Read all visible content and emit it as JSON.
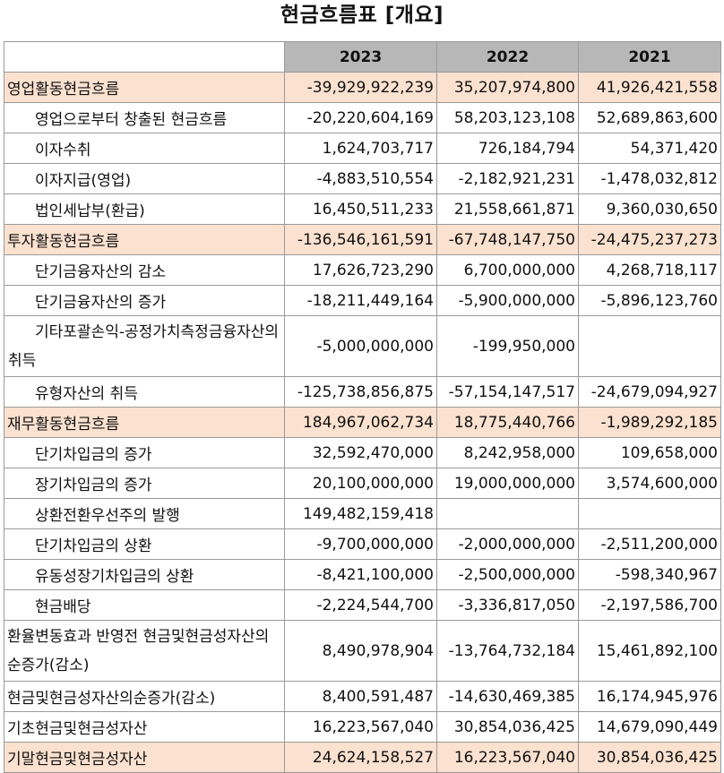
{
  "title": "현금흐름표 [개요]",
  "columns": [
    "2023",
    "2022",
    "2021"
  ],
  "rows": [
    {
      "label": "영업활동현금흐름",
      "highlight": true,
      "indent": false,
      "wrap": false,
      "values": [
        "-39,929,922,239",
        "35,207,974,800",
        "41,926,421,558"
      ]
    },
    {
      "label": "영업으로부터 창출된 현금흐름",
      "highlight": false,
      "indent": true,
      "wrap": false,
      "values": [
        "-20,220,604,169",
        "58,203,123,108",
        "52,689,863,600"
      ]
    },
    {
      "label": "이자수취",
      "highlight": false,
      "indent": true,
      "wrap": false,
      "values": [
        "1,624,703,717",
        "726,184,794",
        "54,371,420"
      ]
    },
    {
      "label": "이자지급(영업)",
      "highlight": false,
      "indent": true,
      "wrap": false,
      "values": [
        "-4,883,510,554",
        "-2,182,921,231",
        "-1,478,032,812"
      ]
    },
    {
      "label": "법인세납부(환급)",
      "highlight": false,
      "indent": true,
      "wrap": false,
      "values": [
        "16,450,511,233",
        "21,558,661,871",
        "9,360,030,650"
      ]
    },
    {
      "label": "투자활동현금흐름",
      "highlight": true,
      "indent": false,
      "wrap": false,
      "values": [
        "-136,546,161,591",
        "-67,748,147,750",
        "-24,475,237,273"
      ]
    },
    {
      "label": "단기금융자산의 감소",
      "highlight": false,
      "indent": true,
      "wrap": false,
      "values": [
        "17,626,723,290",
        "6,700,000,000",
        "4,268,718,117"
      ]
    },
    {
      "label": "단기금융자산의 증가",
      "highlight": false,
      "indent": true,
      "wrap": false,
      "values": [
        "-18,211,449,164",
        "-5,900,000,000",
        "-5,896,123,760"
      ]
    },
    {
      "label": "기타포괄손익-공정가치측정금융자산의 취득",
      "highlight": false,
      "indent": true,
      "wrap": true,
      "values": [
        "-5,000,000,000",
        "-199,950,000",
        ""
      ]
    },
    {
      "label": "유형자산의 취득",
      "highlight": false,
      "indent": true,
      "wrap": false,
      "values": [
        "-125,738,856,875",
        "-57,154,147,517",
        "-24,679,094,927"
      ]
    },
    {
      "label": "재무활동현금흐름",
      "highlight": true,
      "indent": false,
      "wrap": false,
      "values": [
        "184,967,062,734",
        "18,775,440,766",
        "-1,989,292,185"
      ]
    },
    {
      "label": "단기차입금의 증가",
      "highlight": false,
      "indent": true,
      "wrap": false,
      "values": [
        "32,592,470,000",
        "8,242,958,000",
        "109,658,000"
      ]
    },
    {
      "label": "장기차입금의 증가",
      "highlight": false,
      "indent": true,
      "wrap": false,
      "values": [
        "20,100,000,000",
        "19,000,000,000",
        "3,574,600,000"
      ]
    },
    {
      "label": "상환전환우선주의 발행",
      "highlight": false,
      "indent": true,
      "wrap": false,
      "values": [
        "149,482,159,418",
        "",
        ""
      ]
    },
    {
      "label": "단기차입금의 상환",
      "highlight": false,
      "indent": true,
      "wrap": false,
      "values": [
        "-9,700,000,000",
        "-2,000,000,000",
        "-2,511,200,000"
      ]
    },
    {
      "label": "유동성장기차입금의 상환",
      "highlight": false,
      "indent": true,
      "wrap": false,
      "values": [
        "-8,421,100,000",
        "-2,500,000,000",
        "-598,340,967"
      ]
    },
    {
      "label": "현금배당",
      "highlight": false,
      "indent": true,
      "wrap": false,
      "values": [
        "-2,224,544,700",
        "-3,336,817,050",
        "-2,197,586,700"
      ]
    },
    {
      "label": "환율변동효과 반영전 현금및현금성자산의 순증가(감소)",
      "highlight": false,
      "indent": false,
      "wrap": true,
      "values": [
        "8,490,978,904",
        "-13,764,732,184",
        "15,461,892,100"
      ]
    },
    {
      "label": "현금및현금성자산의순증가(감소)",
      "highlight": false,
      "indent": false,
      "wrap": false,
      "values": [
        "8,400,591,487",
        "-14,630,469,385",
        "16,174,945,976"
      ]
    },
    {
      "label": "기초현금및현금성자산",
      "highlight": false,
      "indent": false,
      "wrap": false,
      "values": [
        "16,223,567,040",
        "30,854,036,425",
        "14,679,090,449"
      ]
    },
    {
      "label": "기말현금및현금성자산",
      "highlight": true,
      "indent": false,
      "wrap": false,
      "values": [
        "24,624,158,527",
        "16,223,567,040",
        "30,854,036,425"
      ]
    }
  ]
}
